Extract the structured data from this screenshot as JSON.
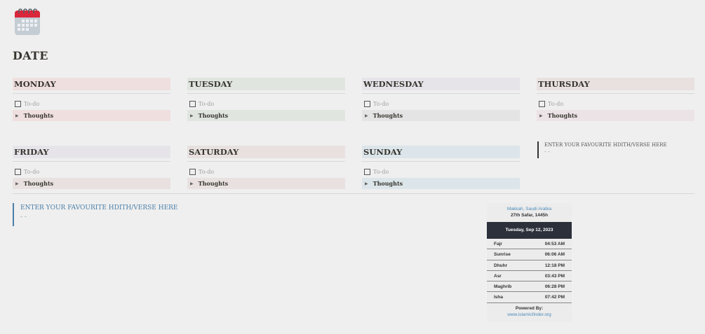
{
  "page": {
    "title": "DATE",
    "icon": "calendar-icon"
  },
  "todo_placeholder": "To-do",
  "thoughts_label": "Thoughts",
  "days": [
    {
      "name": "MONDAY",
      "header_color": "#efdfdf",
      "thoughts_color": "#efdfdf"
    },
    {
      "name": "TUESDAY",
      "header_color": "#e0e5df",
      "thoughts_color": "#e0e5df"
    },
    {
      "name": "WEDNESDAY",
      "header_color": "#e6e4e9",
      "thoughts_color": "#e4e4e4"
    },
    {
      "name": "THURSDAY",
      "header_color": "#e8e1e0",
      "thoughts_color": "#ece3e7"
    },
    {
      "name": "FRIDAY",
      "header_color": "#e6e4e9",
      "thoughts_color": "#e8e1e0"
    },
    {
      "name": "SATURDAY",
      "header_color": "#e8e1e0",
      "thoughts_color": "#e8e1e0"
    },
    {
      "name": "SUNDAY",
      "header_color": "#dce5e9",
      "thoughts_color": "#dce5e9"
    }
  ],
  "quote_side": {
    "text": "ENTER YOUR FAVOURITE HDITH/VERSE HERE",
    "dash": "- -"
  },
  "quote_main": {
    "text": "ENTER YOUR FAVOURITE HDITH/VERSE HERE",
    "dash": "- -"
  },
  "prayer_widget": {
    "location": "Makkah, Saudi Arabia",
    "hijri_date": "27th Safar, 1445h",
    "date": "Tuesday, Sep 12, 2023",
    "times": [
      {
        "name": "Fajr",
        "time": "04:53 AM"
      },
      {
        "name": "Sunrise",
        "time": "06:06 AM"
      },
      {
        "name": "Dhuhr",
        "time": "12:18 PM"
      },
      {
        "name": "Asr",
        "time": "03:43 PM"
      },
      {
        "name": "Maghrib",
        "time": "06:28 PM"
      },
      {
        "name": "Isha",
        "time": "07:42 PM"
      }
    ],
    "powered_by": "Powered By:",
    "link": "www.islamicfinder.org"
  }
}
